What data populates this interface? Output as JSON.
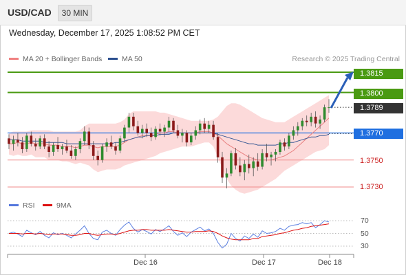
{
  "header": {
    "symbol": "USD/CAD",
    "timeframe": "30 MIN"
  },
  "datetime": "Wednesday, December 17, 2025 1:08:52 PM CET",
  "legend": {
    "ma20": {
      "label": "MA 20 + Bollinger Bands",
      "color": "#f08080"
    },
    "ma50": {
      "label": "MA 50",
      "color": "#2b4f8f"
    }
  },
  "credit": "Research © 2025 Trading Central",
  "price_levels": [
    {
      "label": "1.3815",
      "type": "resistance",
      "color": "#4a9a12"
    },
    {
      "label": "1.3800",
      "type": "resistance",
      "color": "#4a9a12"
    },
    {
      "label": "1.3789",
      "type": "last",
      "color": "#333333"
    },
    {
      "label": "1.3770",
      "type": "pivot",
      "color": "#1f6fe0"
    },
    {
      "label": "1.3750",
      "type": "support",
      "color": "#cc2222"
    },
    {
      "label": "1.3730",
      "type": "support",
      "color": "#cc2222"
    }
  ],
  "rsi_legend": {
    "rsi": {
      "label": "RSI",
      "color": "#5577dd"
    },
    "ma9": {
      "label": "9MA",
      "color": "#dd1111"
    }
  },
  "rsi_ticks": [
    "70",
    "50",
    "30"
  ],
  "x_axis_ticks": [
    "Dec 16",
    "Dec 17",
    "Dec 18"
  ],
  "chart_data": {
    "type": "candlestick",
    "price_range": [
      1.3725,
      1.3822
    ],
    "levels": [
      1.3815,
      1.38,
      1.3789,
      1.377,
      1.375,
      1.373
    ],
    "candles": [
      [
        1.3766,
        1.3769,
        1.3758,
        1.3762
      ],
      [
        1.3762,
        1.3768,
        1.3757,
        1.3765
      ],
      [
        1.3765,
        1.377,
        1.376,
        1.3763
      ],
      [
        1.3763,
        1.3767,
        1.3755,
        1.3758
      ],
      [
        1.3758,
        1.377,
        1.3756,
        1.3768
      ],
      [
        1.3768,
        1.3771,
        1.376,
        1.3762
      ],
      [
        1.3762,
        1.3766,
        1.3757,
        1.376
      ],
      [
        1.376,
        1.3768,
        1.3758,
        1.3766
      ],
      [
        1.3766,
        1.3769,
        1.3758,
        1.376
      ],
      [
        1.376,
        1.3764,
        1.3752,
        1.3756
      ],
      [
        1.3756,
        1.3763,
        1.3753,
        1.3761
      ],
      [
        1.3761,
        1.3767,
        1.3756,
        1.3758
      ],
      [
        1.3758,
        1.3762,
        1.3754,
        1.376
      ],
      [
        1.376,
        1.3765,
        1.3755,
        1.3757
      ],
      [
        1.3757,
        1.3761,
        1.3751,
        1.3753
      ],
      [
        1.3753,
        1.376,
        1.375,
        1.3758
      ],
      [
        1.3758,
        1.3766,
        1.3755,
        1.3764
      ],
      [
        1.3764,
        1.3775,
        1.3761,
        1.3771
      ],
      [
        1.3771,
        1.3774,
        1.3758,
        1.3761
      ],
      [
        1.3761,
        1.3764,
        1.375,
        1.3753
      ],
      [
        1.3753,
        1.3757,
        1.3746,
        1.375
      ],
      [
        1.375,
        1.3762,
        1.3748,
        1.376
      ],
      [
        1.376,
        1.3766,
        1.3756,
        1.3763
      ],
      [
        1.3763,
        1.3768,
        1.3758,
        1.376
      ],
      [
        1.376,
        1.3763,
        1.3754,
        1.3757
      ],
      [
        1.3757,
        1.3768,
        1.3755,
        1.3766
      ],
      [
        1.3766,
        1.3776,
        1.3763,
        1.3774
      ],
      [
        1.3774,
        1.3785,
        1.377,
        1.3782
      ],
      [
        1.3782,
        1.3785,
        1.3772,
        1.3775
      ],
      [
        1.3775,
        1.3779,
        1.3768,
        1.377
      ],
      [
        1.377,
        1.3776,
        1.3766,
        1.3773
      ],
      [
        1.3773,
        1.3777,
        1.3767,
        1.377
      ],
      [
        1.377,
        1.3774,
        1.3764,
        1.3767
      ],
      [
        1.3767,
        1.3775,
        1.3765,
        1.3773
      ],
      [
        1.3773,
        1.3777,
        1.3768,
        1.3771
      ],
      [
        1.3771,
        1.3776,
        1.3767,
        1.3774
      ],
      [
        1.3774,
        1.3782,
        1.3771,
        1.3779
      ],
      [
        1.3779,
        1.3781,
        1.377,
        1.3772
      ],
      [
        1.3772,
        1.3776,
        1.3766,
        1.3768
      ],
      [
        1.3768,
        1.3773,
        1.3763,
        1.377
      ],
      [
        1.377,
        1.3772,
        1.376,
        1.3763
      ],
      [
        1.3763,
        1.377,
        1.3761,
        1.3768
      ],
      [
        1.3768,
        1.3775,
        1.3765,
        1.3772
      ],
      [
        1.3772,
        1.378,
        1.3769,
        1.3777
      ],
      [
        1.3777,
        1.3781,
        1.377,
        1.3773
      ],
      [
        1.3773,
        1.3779,
        1.377,
        1.3776
      ],
      [
        1.3776,
        1.3779,
        1.3765,
        1.3767
      ],
      [
        1.3767,
        1.377,
        1.3748,
        1.3752
      ],
      [
        1.3752,
        1.3756,
        1.3733,
        1.3737
      ],
      [
        1.3737,
        1.3744,
        1.3729,
        1.374
      ],
      [
        1.374,
        1.3757,
        1.3738,
        1.3755
      ],
      [
        1.3755,
        1.3759,
        1.3743,
        1.3746
      ],
      [
        1.3746,
        1.3752,
        1.3738,
        1.3741
      ],
      [
        1.3741,
        1.375,
        1.3735,
        1.3747
      ],
      [
        1.3747,
        1.3754,
        1.374,
        1.3744
      ],
      [
        1.3744,
        1.3752,
        1.3738,
        1.3749
      ],
      [
        1.3749,
        1.3755,
        1.3742,
        1.3745
      ],
      [
        1.3745,
        1.3758,
        1.3743,
        1.3755
      ],
      [
        1.3755,
        1.3762,
        1.3749,
        1.3752
      ],
      [
        1.3752,
        1.3756,
        1.3746,
        1.3754
      ],
      [
        1.3754,
        1.3758,
        1.3749,
        1.3756
      ],
      [
        1.3756,
        1.3765,
        1.3754,
        1.3763
      ],
      [
        1.3763,
        1.3766,
        1.3757,
        1.376
      ],
      [
        1.376,
        1.377,
        1.3758,
        1.3768
      ],
      [
        1.3768,
        1.3775,
        1.3765,
        1.3772
      ],
      [
        1.3772,
        1.3778,
        1.3768,
        1.3775
      ],
      [
        1.3775,
        1.3781,
        1.3772,
        1.3779
      ],
      [
        1.3779,
        1.3783,
        1.3775,
        1.3778
      ],
      [
        1.3778,
        1.3785,
        1.3775,
        1.3782
      ],
      [
        1.3782,
        1.3786,
        1.3774,
        1.3777
      ],
      [
        1.3777,
        1.3783,
        1.3773,
        1.378
      ],
      [
        1.378,
        1.3791,
        1.3778,
        1.3789
      ],
      [
        1.3789,
        1.3795,
        1.3785,
        1.3789
      ]
    ],
    "ma20": [
      1.3762,
      1.3762,
      1.3763,
      1.3762,
      1.3762,
      1.3763,
      1.3762,
      1.3762,
      1.3762,
      1.3761,
      1.3761,
      1.3761,
      1.376,
      1.376,
      1.376,
      1.3759,
      1.376,
      1.3761,
      1.3761,
      1.376,
      1.3759,
      1.376,
      1.376,
      1.376,
      1.376,
      1.3761,
      1.3763,
      1.3765,
      1.3766,
      1.3767,
      1.3768,
      1.3768,
      1.3768,
      1.3769,
      1.377,
      1.377,
      1.3771,
      1.3771,
      1.377,
      1.377,
      1.377,
      1.377,
      1.377,
      1.3771,
      1.3771,
      1.3771,
      1.377,
      1.3768,
      1.3765,
      1.3762,
      1.376,
      1.3758,
      1.3756,
      1.3754,
      1.3752,
      1.3751,
      1.375,
      1.375,
      1.375,
      1.375,
      1.3751,
      1.3752,
      1.3753,
      1.3755,
      1.3757,
      1.376,
      1.3763,
      1.3766,
      1.3769,
      1.3772,
      1.3775,
      1.3778,
      1.3781
    ],
    "ma50": [
      1.3765,
      1.3765,
      1.3765,
      1.3764,
      1.3764,
      1.3764,
      1.3764,
      1.3764,
      1.3763,
      1.3763,
      1.3763,
      1.3763,
      1.3763,
      1.3762,
      1.3762,
      1.3762,
      1.3762,
      1.3762,
      1.3762,
      1.3762,
      1.3762,
      1.3762,
      1.3762,
      1.3762,
      1.3763,
      1.3763,
      1.3764,
      1.3765,
      1.3766,
      1.3767,
      1.3767,
      1.3768,
      1.3768,
      1.3768,
      1.3769,
      1.3769,
      1.3769,
      1.377,
      1.377,
      1.377,
      1.377,
      1.377,
      1.377,
      1.377,
      1.377,
      1.377,
      1.377,
      1.3769,
      1.3768,
      1.3767,
      1.3766,
      1.3765,
      1.3764,
      1.3763,
      1.3762,
      1.3762,
      1.3761,
      1.3761,
      1.3761,
      1.3761,
      1.3761,
      1.3762,
      1.3762,
      1.3763,
      1.3763,
      1.3764,
      1.3765,
      1.3766,
      1.3767,
      1.3767,
      1.3768,
      1.3768,
      1.3769
    ],
    "bb_upper": [
      1.377,
      1.3771,
      1.3771,
      1.3771,
      1.3771,
      1.3772,
      1.3772,
      1.3772,
      1.3772,
      1.3772,
      1.3771,
      1.3771,
      1.3771,
      1.3771,
      1.3771,
      1.3771,
      1.3772,
      1.3775,
      1.3777,
      1.3777,
      1.3777,
      1.3777,
      1.3777,
      1.3777,
      1.3777,
      1.3778,
      1.378,
      1.3784,
      1.3786,
      1.3786,
      1.3786,
      1.3786,
      1.3786,
      1.3786,
      1.3785,
      1.3785,
      1.3784,
      1.3783,
      1.3782,
      1.3781,
      1.378,
      1.3779,
      1.3779,
      1.3779,
      1.3779,
      1.3779,
      1.378,
      1.3782,
      1.3786,
      1.379,
      1.3792,
      1.3792,
      1.3791,
      1.3789,
      1.3787,
      1.3785,
      1.3783,
      1.3781,
      1.378,
      1.3779,
      1.3778,
      1.3778,
      1.3778,
      1.378,
      1.3782,
      1.3784,
      1.3786,
      1.3788,
      1.379,
      1.3792,
      1.3794,
      1.3796,
      1.3798
    ],
    "bb_lower": [
      1.3754,
      1.3753,
      1.3754,
      1.3753,
      1.3753,
      1.3754,
      1.3752,
      1.3752,
      1.3752,
      1.375,
      1.375,
      1.375,
      1.3749,
      1.3749,
      1.3748,
      1.3747,
      1.3748,
      1.3747,
      1.3746,
      1.3743,
      1.3741,
      1.3742,
      1.3743,
      1.3743,
      1.3743,
      1.3744,
      1.3746,
      1.3747,
      1.3748,
      1.3749,
      1.375,
      1.3751,
      1.3752,
      1.3753,
      1.3755,
      1.3756,
      1.3757,
      1.3758,
      1.3759,
      1.376,
      1.376,
      1.376,
      1.3761,
      1.3762,
      1.3763,
      1.3763,
      1.376,
      1.3752,
      1.3744,
      1.3736,
      1.3731,
      1.3728,
      1.3726,
      1.3725,
      1.3726,
      1.3727,
      1.3728,
      1.373,
      1.3732,
      1.3734,
      1.3736,
      1.3739,
      1.3742,
      1.3744,
      1.3746,
      1.3748,
      1.375,
      1.3752,
      1.3754,
      1.3756,
      1.3757,
      1.3758,
      1.3761
    ],
    "rsi_range": [
      20,
      80
    ],
    "rsi": [
      50,
      52,
      49,
      45,
      55,
      51,
      48,
      53,
      47,
      43,
      51,
      48,
      50,
      47,
      43,
      49,
      55,
      62,
      50,
      42,
      40,
      52,
      55,
      50,
      47,
      56,
      63,
      68,
      58,
      52,
      56,
      53,
      49,
      56,
      53,
      57,
      62,
      53,
      47,
      51,
      45,
      52,
      56,
      60,
      54,
      57,
      50,
      36,
      27,
      33,
      50,
      42,
      38,
      46,
      42,
      49,
      44,
      54,
      50,
      51,
      53,
      58,
      55,
      61,
      63,
      64,
      67,
      65,
      67,
      59,
      64,
      70,
      68
    ],
    "rsi_ma9": [
      50,
      50,
      50,
      49,
      50,
      50,
      49,
      50,
      49,
      48,
      49,
      49,
      49,
      48,
      47,
      47,
      48,
      50,
      50,
      48,
      47,
      48,
      49,
      49,
      48,
      50,
      52,
      54,
      55,
      55,
      56,
      56,
      55,
      55,
      55,
      55,
      56,
      55,
      54,
      53,
      52,
      52,
      53,
      53,
      53,
      54,
      53,
      50,
      46,
      43,
      41,
      40,
      40,
      40,
      40,
      42,
      42,
      45,
      46,
      47,
      48,
      50,
      51,
      53,
      55,
      56,
      58,
      59,
      61,
      62,
      63,
      64,
      65
    ]
  }
}
